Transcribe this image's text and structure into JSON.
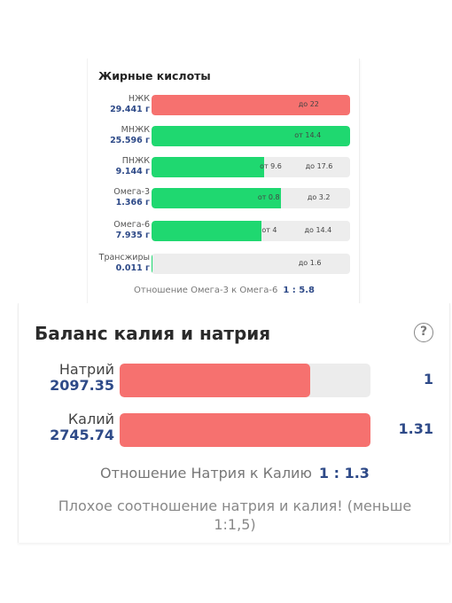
{
  "fatty_acids": {
    "title": "Жирные кислоты",
    "rows": [
      {
        "name": "НЖК",
        "amount": "29.441 г",
        "fill_fraction": 1.0,
        "color": "#f6716f",
        "markers": [
          {
            "text": "до 22",
            "position_fraction": 0.74
          }
        ]
      },
      {
        "name": "МНЖК",
        "amount": "25.596 г",
        "fill_fraction": 1.0,
        "color": "#1fd870",
        "markers": [
          {
            "text": "от 14.4",
            "position_fraction": 0.72
          }
        ]
      },
      {
        "name": "ПНЖК",
        "amount": "9.144 г",
        "fill_fraction": 0.565,
        "color": "#1fd870",
        "markers": [
          {
            "text": "от 9.6",
            "position_fraction": 0.545
          },
          {
            "text": "до 17.6",
            "position_fraction": 0.775
          }
        ]
      },
      {
        "name": "Омега-3",
        "amount": "1.366 г",
        "fill_fraction": 0.65,
        "color": "#1fd870",
        "markers": [
          {
            "text": "от 0.8",
            "position_fraction": 0.535
          },
          {
            "text": "до 3.2",
            "position_fraction": 0.785
          }
        ]
      },
      {
        "name": "Омега-6",
        "amount": "7.935 г",
        "fill_fraction": 0.555,
        "color": "#1fd870",
        "markers": [
          {
            "text": "от 4",
            "position_fraction": 0.555
          },
          {
            "text": "до 14.4",
            "position_fraction": 0.77
          }
        ]
      },
      {
        "name": "Трансжиры",
        "amount": "0.011 г",
        "fill_fraction": 0.006,
        "color": "#1fd870",
        "markers": [
          {
            "text": "до 1.6",
            "position_fraction": 0.74
          }
        ]
      }
    ],
    "ratio_label": "Отношение Омега-3 к Омега-6",
    "ratio_value": "1 : 5.8"
  },
  "potassium_sodium": {
    "title": "Баланс калия и натрия",
    "help_icon": "question-circle-icon",
    "help_glyph": "?",
    "rows": [
      {
        "name": "Натрий",
        "amount": "2097.35",
        "fill_fraction": 0.76,
        "value": "1"
      },
      {
        "name": "Калий",
        "amount": "2745.74",
        "fill_fraction": 1.0,
        "value": "1.31"
      }
    ],
    "ratio_label": "Отношение Натрия к Калию",
    "ratio_value": "1 : 1.3",
    "warning": "Плохое соотношение натрия и калия! (меньше 1:1,5)",
    "bar_color": "#f6716f"
  }
}
